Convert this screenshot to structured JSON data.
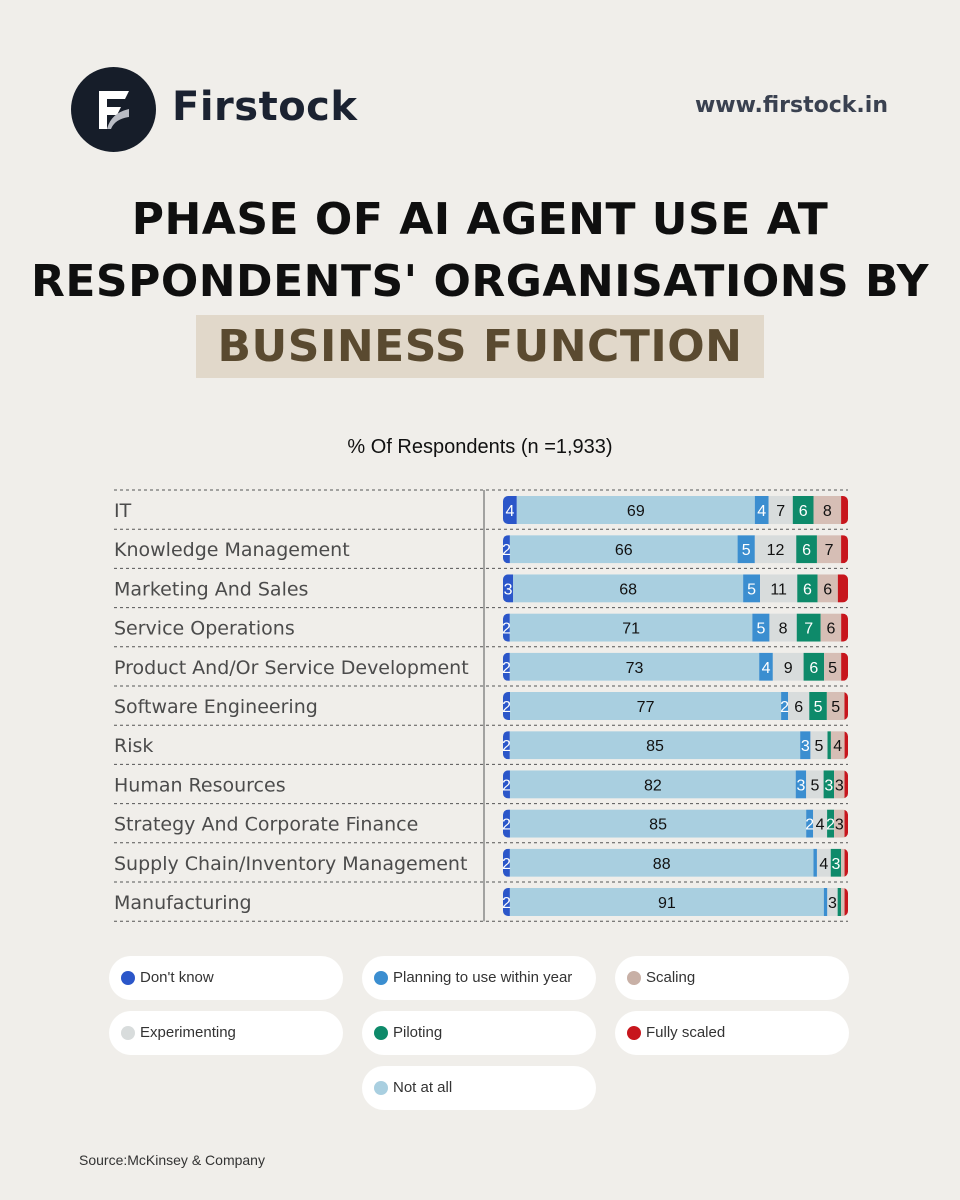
{
  "header": {
    "brand_name": "Firstock",
    "website": "www.firstock.in"
  },
  "title": {
    "line1": "PHASE OF AI AGENT USE AT",
    "line2": "RESPONDENTS' ORGANISATIONS BY",
    "highlight": "BUSINESS FUNCTION"
  },
  "chart_data": {
    "type": "bar",
    "orientation": "horizontal-stacked-100",
    "title": "% Of Respondents (n =1,933)",
    "categories": [
      "IT",
      "Knowledge Management",
      "Marketing And Sales",
      "Service Operations",
      "Product And/Or Service Development",
      "Software Engineering",
      "Risk",
      "Human Resources",
      "Strategy And Corporate Finance",
      "Supply Chain/Inventory Management",
      "Manufacturing"
    ],
    "series": [
      {
        "name": "Don't know",
        "color": "#2b56c9",
        "label_color": "#ffffff",
        "values": [
          4,
          2,
          3,
          2,
          2,
          2,
          2,
          2,
          2,
          2,
          2
        ]
      },
      {
        "name": "Not at all",
        "color": "#a9cfe0",
        "label_color": "#111111",
        "values": [
          69,
          66,
          68,
          71,
          73,
          77,
          85,
          82,
          85,
          88,
          91
        ]
      },
      {
        "name": "Planning to use within year",
        "color": "#3b8ed0",
        "label_color": "#ffffff",
        "values": [
          4,
          5,
          5,
          5,
          4,
          2,
          3,
          3,
          2,
          1,
          1
        ]
      },
      {
        "name": "Experimenting",
        "color": "#d8dcdc",
        "label_color": "#111111",
        "values": [
          7,
          12,
          11,
          8,
          9,
          6,
          5,
          5,
          4,
          4,
          3
        ]
      },
      {
        "name": "Piloting",
        "color": "#0e8a6a",
        "label_color": "#ffffff",
        "values": [
          6,
          6,
          6,
          7,
          6,
          5,
          1,
          3,
          2,
          3,
          1
        ]
      },
      {
        "name": "Scaling",
        "color": "#d6beb5",
        "label_color": "#111111",
        "values": [
          8,
          7,
          6,
          6,
          5,
          5,
          4,
          3,
          3,
          1,
          1
        ]
      },
      {
        "name": "Fully scaled",
        "color": "#c7161d",
        "label_color": "#ffffff",
        "values": [
          2,
          2,
          3,
          2,
          2,
          1,
          1,
          1,
          1,
          1,
          1
        ]
      }
    ],
    "displayed_labels": [
      [
        "4",
        "69",
        "4",
        "7",
        "6",
        "8",
        ""
      ],
      [
        "2",
        "66",
        "5",
        "12",
        "6",
        "7",
        ""
      ],
      [
        "3",
        "68",
        "5",
        "11",
        "6",
        "6",
        ""
      ],
      [
        "2",
        "71",
        "5",
        "8",
        "7",
        "6",
        ""
      ],
      [
        "2",
        "73",
        "4",
        "9",
        "6",
        "5",
        ""
      ],
      [
        "2",
        "77",
        "2",
        "6",
        "5",
        "5",
        ""
      ],
      [
        "2",
        "85",
        "3",
        "5",
        "",
        "4",
        ""
      ],
      [
        "2",
        "82",
        "3",
        "5",
        "3",
        "3",
        ""
      ],
      [
        "2",
        "85",
        "2",
        "4",
        "2",
        "3",
        ""
      ],
      [
        "2",
        "88",
        "",
        "4",
        "3",
        "",
        ""
      ],
      [
        "2",
        "91",
        "",
        "3",
        "",
        "",
        ""
      ]
    ]
  },
  "legend": [
    {
      "label": "Don't know",
      "color": "#2b56c9"
    },
    {
      "label": "Planning to use within year",
      "color": "#3b8ed0"
    },
    {
      "label": "Scaling",
      "color": "#c8b0a6"
    },
    {
      "label": "Experimenting",
      "color": "#d8dcdc"
    },
    {
      "label": "Piloting",
      "color": "#0e8a6a"
    },
    {
      "label": "Fully scaled",
      "color": "#c7161d"
    },
    {
      "label": "Not at all",
      "color": "#a9cfe0"
    }
  ],
  "source": "Source:McKinsey & Company"
}
